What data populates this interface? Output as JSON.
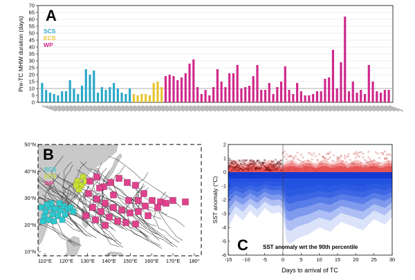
{
  "chart_data": [
    {
      "panel": "A",
      "type": "bar",
      "ylabel": "Pre-TC MHW duration (days)",
      "ylim": [
        0,
        70
      ],
      "yticks": [
        0,
        5,
        10,
        15,
        20,
        25,
        30,
        35,
        40,
        45,
        50,
        55,
        60,
        65,
        70
      ],
      "reference_line": 10,
      "legend": [
        {
          "name": "SCS",
          "color": "#2aa8c9"
        },
        {
          "name": "ECS",
          "color": "#e6c52e"
        },
        {
          "name": "WP",
          "color": "#d0288c"
        }
      ],
      "groups": [
        {
          "name": "SCS",
          "color": "#2aa8c9",
          "values": [
            14,
            9,
            7,
            6,
            5,
            8,
            8,
            16,
            10,
            6,
            12,
            24,
            20,
            23,
            7,
            11,
            9,
            11,
            14,
            10,
            7,
            6,
            10
          ]
        },
        {
          "name": "ECS",
          "color": "#e6c52e",
          "values": [
            6,
            5,
            6,
            6,
            5,
            14,
            15,
            11
          ]
        },
        {
          "name": "WP",
          "color": "#d0288c",
          "values": [
            19,
            20,
            19,
            16,
            18,
            21,
            28,
            31,
            11,
            6,
            9,
            5,
            11,
            24,
            15,
            11,
            21,
            21,
            27,
            10,
            11,
            12,
            19,
            27,
            9,
            9,
            14,
            6,
            11,
            15,
            26,
            9,
            6,
            14,
            8,
            5,
            5,
            6,
            8,
            8,
            17,
            18,
            38,
            10,
            29,
            62,
            8,
            15,
            7,
            9,
            6,
            27,
            15,
            8,
            7,
            9,
            9
          ]
        }
      ]
    },
    {
      "panel": "B",
      "type": "map",
      "xticks": [
        "110°E",
        "120°E",
        "130°E",
        "140°E",
        "150°E",
        "160°E",
        "170°E",
        "180°"
      ],
      "yticks": [
        "10°N",
        "20°N",
        "30°N",
        "40°N",
        "50°N"
      ],
      "legend": [
        {
          "name": "SCS",
          "color": "#2ec9cf"
        },
        {
          "name": "ECS",
          "color": "#c8e034"
        },
        {
          "name": "WP",
          "color": "#e0428c"
        }
      ]
    },
    {
      "panel": "C",
      "type": "area",
      "xlabel": "Days to arrival of TC",
      "ylabel": "SST anomaly (°C)",
      "xlim": [
        -15,
        30
      ],
      "ylim": [
        -6,
        2
      ],
      "xticks": [
        -15,
        -10,
        -5,
        0,
        5,
        10,
        15,
        20,
        25,
        30
      ],
      "yticks": [
        -6,
        -5,
        -4,
        -3,
        -2,
        -1,
        0,
        1,
        2
      ],
      "annotation": "SST anomaly wrt the 90th percentile",
      "colors": {
        "negative": "#1f4fe0",
        "positive": "#e02020"
      },
      "lower_envelope": {
        "x": [
          -15,
          -13,
          -11,
          -9,
          -7,
          -5,
          -3,
          -1,
          0,
          1,
          2,
          4,
          7,
          10,
          13,
          16,
          19,
          22,
          25,
          28,
          30
        ],
        "y": [
          -4.0,
          -3.0,
          -3.5,
          -2.8,
          -3.3,
          -2.6,
          -3.0,
          -2.9,
          -3.2,
          -5.0,
          -5.2,
          -4.8,
          -4.5,
          -4.0,
          -4.3,
          -3.6,
          -3.9,
          -4.2,
          -3.4,
          -3.8,
          -3.2
        ]
      }
    }
  ],
  "panels": {
    "a": "A",
    "b": "B",
    "c": "C"
  }
}
